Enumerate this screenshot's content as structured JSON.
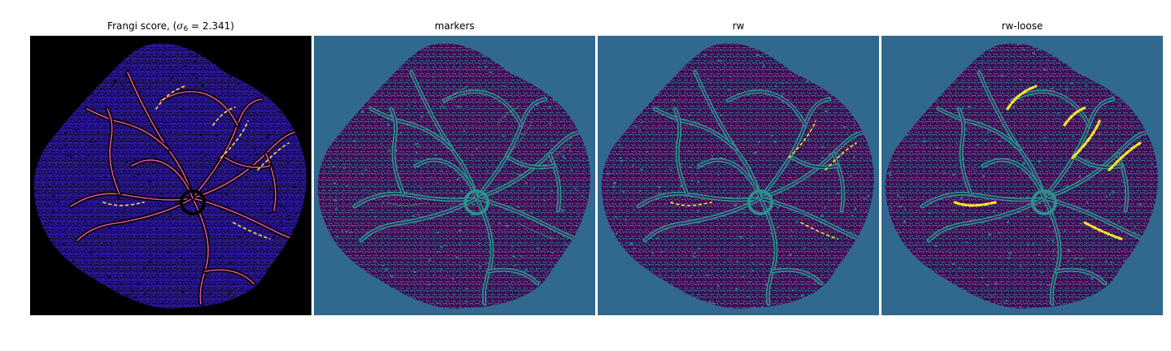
{
  "figure": {
    "panels": [
      {
        "title_prefix": "Frangi score, (",
        "title_symbol": "σ",
        "title_sub": "6",
        "title_eq": " = 2.341)",
        "background": "#000000",
        "tissue_color": "#2a1696",
        "vessel_color": "#e052a0",
        "hot_color": "#fbe04b"
      },
      {
        "title": "markers",
        "background": "#31688e",
        "tissue_color": "#440154",
        "vessel_color": "#2d8f8c",
        "hot_color": "#35b779"
      },
      {
        "title": "rw",
        "background": "#31688e",
        "tissue_color": "#440154",
        "vessel_color": "#2d8f8c",
        "hot_color": "#fde725"
      },
      {
        "title": "rw-loose",
        "background": "#31688e",
        "tissue_color": "#440154",
        "vessel_color": "#2d8f8c",
        "hot_color": "#fde725"
      }
    ]
  }
}
